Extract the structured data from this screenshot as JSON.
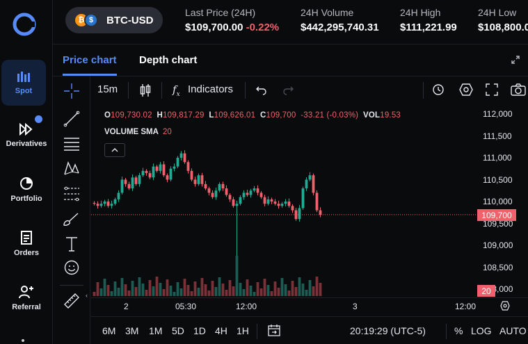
{
  "nav": {
    "items": [
      {
        "label": "Spot",
        "icon": "bar-chart-icon"
      },
      {
        "label": "Derivatives",
        "icon": "fast-forward-icon"
      },
      {
        "label": "Portfolio",
        "icon": "pie-chart-icon"
      },
      {
        "label": "Orders",
        "icon": "document-icon"
      },
      {
        "label": "Referral",
        "icon": "add-user-icon"
      }
    ]
  },
  "header": {
    "pair": "BTC-USD",
    "last_price_label": "Last Price (24H)",
    "last_price": "$109,700.00",
    "last_change": "-0.22%",
    "volume_label": "24H Volume",
    "volume": "$442,295,740.31",
    "high_label": "24H High",
    "high": "$111,221.99",
    "low_label": "24H Low",
    "low": "$108,800.0"
  },
  "tabs": {
    "price": "Price chart",
    "depth": "Depth chart"
  },
  "toolbar": {
    "interval": "15m",
    "indicators": "Indicators"
  },
  "legend": {
    "o_label": "O",
    "o": "109,730.02",
    "h_label": "H",
    "h": "109,817.29",
    "l_label": "L",
    "l": "109,626.01",
    "c_label": "C",
    "c": "109,700",
    "change": "-33.21 (-0.03%)",
    "vol_label": "VOL",
    "vol": "19.53",
    "sma_label": "VOLUME SMA",
    "sma": "20"
  },
  "colors": {
    "up": "#22ab94",
    "down": "#f0616d",
    "accent": "#578bfa"
  },
  "chart_data": {
    "type": "candlestick",
    "y_ticks": [
      "112,000",
      "111,500",
      "111,000",
      "110,500",
      "110,000",
      "109,500",
      "109,000",
      "108,500",
      "108,000"
    ],
    "ylim": [
      108000,
      112000
    ],
    "x_ticks": [
      "2",
      "05:30",
      "12:00",
      "3",
      "12:00"
    ],
    "last_price": "109,700",
    "volume_last": "20",
    "close_series": [
      109950,
      109900,
      109950,
      110000,
      109900,
      109950,
      110050,
      110200,
      110500,
      110400,
      110300,
      110550,
      110400,
      110600,
      110700,
      110650,
      110550,
      110800,
      110700,
      110850,
      110600,
      110500,
      110750,
      110800,
      111000,
      111100,
      110900,
      110700,
      110500,
      110400,
      110600,
      110400,
      110300,
      110200,
      110100,
      110250,
      110400,
      110300,
      110150,
      110050,
      109900,
      109950,
      110100,
      110200,
      110150,
      110250,
      110300,
      110200,
      110100,
      109950,
      110050,
      110000,
      109950,
      109900,
      109950,
      110000,
      109900,
      109800,
      109600,
      109850,
      110300,
      110500,
      110600,
      110200,
      109800,
      109700
    ]
  }
}
